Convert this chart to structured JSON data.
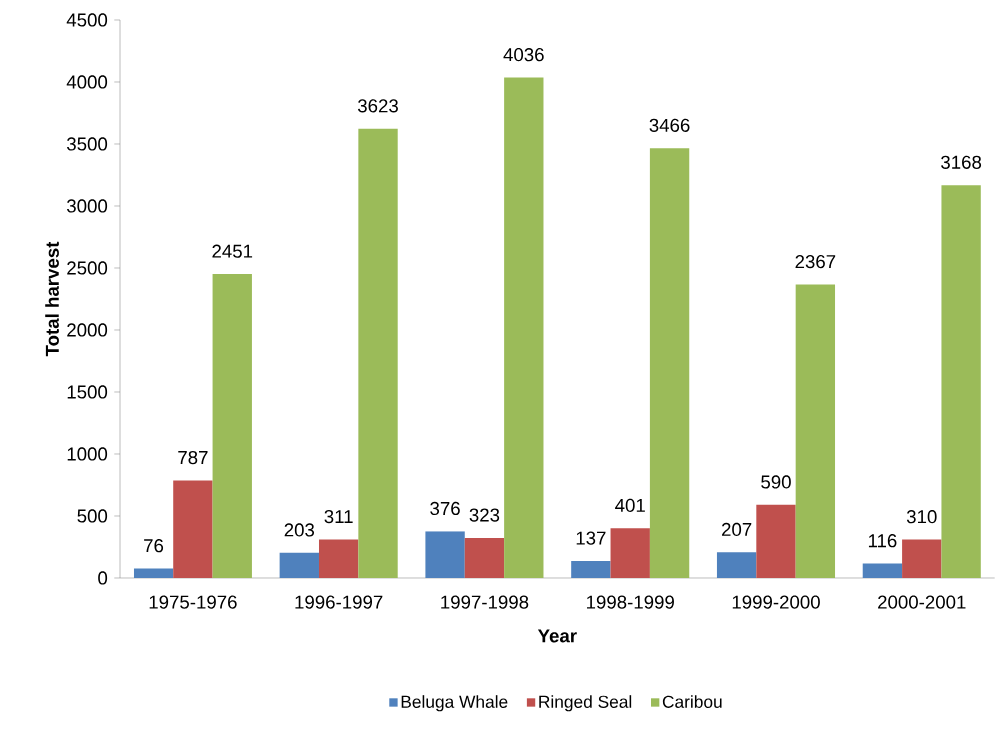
{
  "chart_data": {
    "type": "bar",
    "xlabel": "Year",
    "ylabel": "Total harvest",
    "categories": [
      "1975-1976",
      "1996-1997",
      "1997-1998",
      "1998-1999",
      "1999-2000",
      "2000-2001"
    ],
    "series": [
      {
        "name": "Beluga Whale",
        "color": "#4f81bd",
        "values": [
          76,
          203,
          376,
          137,
          207,
          116
        ]
      },
      {
        "name": "Ringed Seal",
        "color": "#c0504d",
        "values": [
          787,
          311,
          323,
          401,
          590,
          310
        ]
      },
      {
        "name": "Caribou",
        "color": "#9bbb59",
        "values": [
          2451,
          3623,
          4036,
          3466,
          2367,
          3168
        ]
      }
    ],
    "ylim": [
      0,
      4500
    ],
    "yticks": [
      0,
      500,
      1000,
      1500,
      2000,
      2500,
      3000,
      3500,
      4000,
      4500
    ],
    "data_labels": true,
    "legend": "bottom",
    "grid": false
  }
}
